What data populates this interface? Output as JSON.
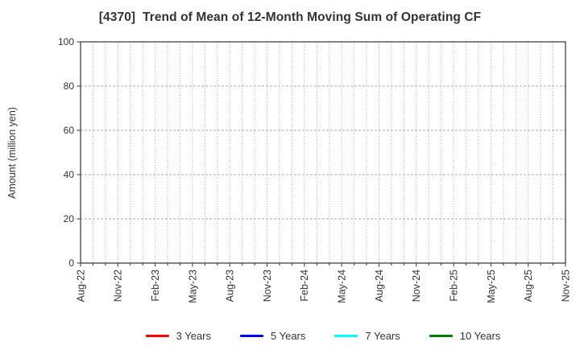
{
  "chart_data": {
    "type": "line",
    "title": "[4370]  Trend of Mean of 12-Month Moving Sum of Operating CF",
    "xlabel": "",
    "ylabel": "Amount (million yen)",
    "ylim": [
      0,
      100
    ],
    "yticks": [
      0,
      20,
      40,
      60,
      80,
      100
    ],
    "x_tick_labels": [
      "Aug-22",
      "Nov-22",
      "Feb-23",
      "May-23",
      "Aug-23",
      "Nov-23",
      "Feb-24",
      "May-24",
      "Aug-24",
      "Nov-24",
      "Feb-25",
      "May-25",
      "Aug-25",
      "Nov-25"
    ],
    "x_total_positions": 40,
    "x_label_step": 3,
    "grid": true,
    "legend_position": "bottom",
    "series": [
      {
        "name": "3 Years",
        "color": "#ff0000",
        "values": []
      },
      {
        "name": "5 Years",
        "color": "#0000ff",
        "values": []
      },
      {
        "name": "7 Years",
        "color": "#00ffff",
        "values": []
      },
      {
        "name": "10 Years",
        "color": "#008000",
        "values": []
      }
    ],
    "colors": {
      "axis": "#333333",
      "grid_vertical": "#b5b5b5",
      "grid_horizontal": "#ababab",
      "tick_text": "#333333"
    }
  }
}
